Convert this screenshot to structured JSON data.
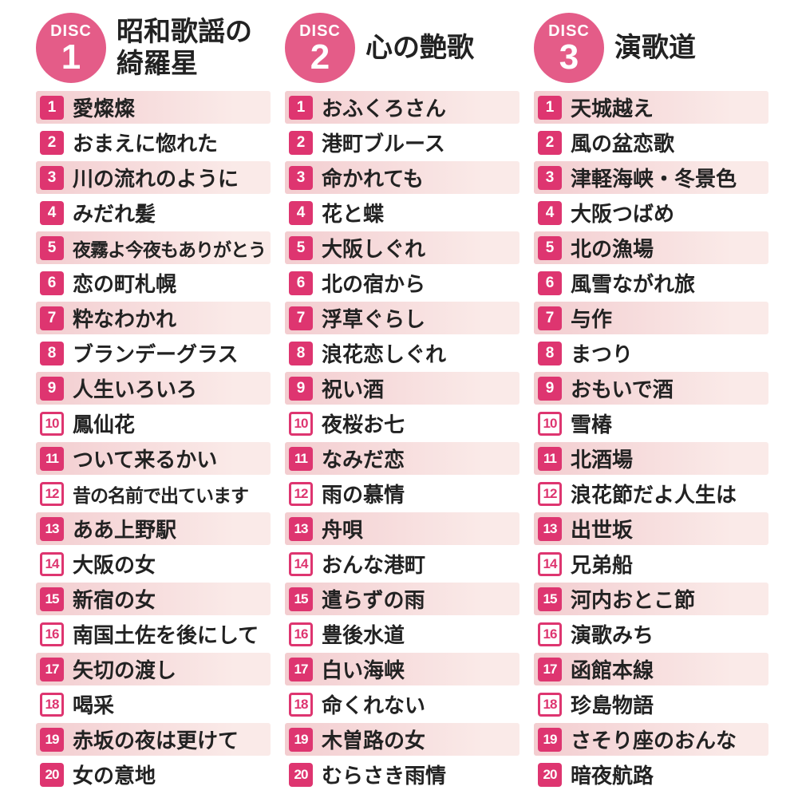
{
  "colors": {
    "accent": "#de3570",
    "disc_circle": "#e45c88",
    "row_bar_from": "#f3cdd0",
    "row_bar_to": "#faeae8",
    "text": "#222222",
    "background": "#ffffff"
  },
  "discs": [
    {
      "disc_label": "DISC",
      "disc_number": "1",
      "title_lines": [
        "昭和歌謡の",
        "綺羅星"
      ],
      "tracks": [
        {
          "num": "1",
          "title": "愛燦燦"
        },
        {
          "num": "2",
          "title": "おまえに惚れた"
        },
        {
          "num": "3",
          "title": "川の流れのように"
        },
        {
          "num": "4",
          "title": "みだれ髪"
        },
        {
          "num": "5",
          "title": "夜霧よ今夜もありがとう"
        },
        {
          "num": "6",
          "title": "恋の町札幌"
        },
        {
          "num": "7",
          "title": "粋なわかれ"
        },
        {
          "num": "8",
          "title": "ブランデーグラス"
        },
        {
          "num": "9",
          "title": "人生いろいろ"
        },
        {
          "num": "10",
          "title": "鳳仙花"
        },
        {
          "num": "11",
          "title": "ついて来るかい"
        },
        {
          "num": "12",
          "title": "昔の名前で出ています"
        },
        {
          "num": "13",
          "title": "ああ上野駅"
        },
        {
          "num": "14",
          "title": "大阪の女"
        },
        {
          "num": "15",
          "title": "新宿の女"
        },
        {
          "num": "16",
          "title": "南国土佐を後にして"
        },
        {
          "num": "17",
          "title": "矢切の渡し"
        },
        {
          "num": "18",
          "title": "喝采"
        },
        {
          "num": "19",
          "title": "赤坂の夜は更けて"
        },
        {
          "num": "20",
          "title": "女の意地"
        }
      ]
    },
    {
      "disc_label": "DISC",
      "disc_number": "2",
      "title_lines": [
        "心の艶歌"
      ],
      "tracks": [
        {
          "num": "1",
          "title": "おふくろさん"
        },
        {
          "num": "2",
          "title": "港町ブルース"
        },
        {
          "num": "3",
          "title": "命かれても"
        },
        {
          "num": "4",
          "title": "花と蝶"
        },
        {
          "num": "5",
          "title": "大阪しぐれ"
        },
        {
          "num": "6",
          "title": "北の宿から"
        },
        {
          "num": "7",
          "title": "浮草ぐらし"
        },
        {
          "num": "8",
          "title": "浪花恋しぐれ"
        },
        {
          "num": "9",
          "title": "祝い酒"
        },
        {
          "num": "10",
          "title": "夜桜お七"
        },
        {
          "num": "11",
          "title": "なみだ恋"
        },
        {
          "num": "12",
          "title": "雨の慕情"
        },
        {
          "num": "13",
          "title": "舟唄"
        },
        {
          "num": "14",
          "title": "おんな港町"
        },
        {
          "num": "15",
          "title": "遣らずの雨"
        },
        {
          "num": "16",
          "title": "豊後水道"
        },
        {
          "num": "17",
          "title": "白い海峡"
        },
        {
          "num": "18",
          "title": "命くれない"
        },
        {
          "num": "19",
          "title": "木曽路の女"
        },
        {
          "num": "20",
          "title": "むらさき雨情"
        }
      ]
    },
    {
      "disc_label": "DISC",
      "disc_number": "3",
      "title_lines": [
        "演歌道"
      ],
      "tracks": [
        {
          "num": "1",
          "title": "天城越え"
        },
        {
          "num": "2",
          "title": "風の盆恋歌"
        },
        {
          "num": "3",
          "title": "津軽海峡・冬景色"
        },
        {
          "num": "4",
          "title": "大阪つばめ"
        },
        {
          "num": "5",
          "title": "北の漁場"
        },
        {
          "num": "6",
          "title": "風雪ながれ旅"
        },
        {
          "num": "7",
          "title": "与作"
        },
        {
          "num": "8",
          "title": "まつり"
        },
        {
          "num": "9",
          "title": "おもいで酒"
        },
        {
          "num": "10",
          "title": "雪椿"
        },
        {
          "num": "11",
          "title": "北酒場"
        },
        {
          "num": "12",
          "title": "浪花節だよ人生は"
        },
        {
          "num": "13",
          "title": "出世坂"
        },
        {
          "num": "14",
          "title": "兄弟船"
        },
        {
          "num": "15",
          "title": "河内おとこ節"
        },
        {
          "num": "16",
          "title": "演歌みち"
        },
        {
          "num": "17",
          "title": "函館本線"
        },
        {
          "num": "18",
          "title": "珍島物語"
        },
        {
          "num": "19",
          "title": "さそり座のおんな"
        },
        {
          "num": "20",
          "title": "暗夜航路"
        }
      ]
    }
  ]
}
